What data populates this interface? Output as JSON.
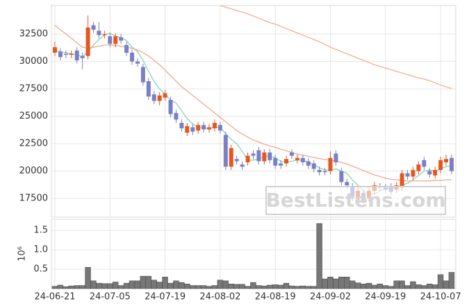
{
  "chart_data": [
    {
      "type": "candlestick",
      "categories": [
        "24-06-21",
        null,
        null,
        null,
        null,
        null,
        null,
        null,
        null,
        null,
        "24-07-05",
        null,
        null,
        null,
        null,
        null,
        null,
        null,
        null,
        null,
        "24-07-19",
        null,
        null,
        null,
        null,
        null,
        null,
        null,
        null,
        null,
        "24-08-02",
        null,
        null,
        null,
        null,
        null,
        null,
        null,
        null,
        null,
        "24-08-19",
        null,
        null,
        null,
        null,
        null,
        null,
        null,
        null,
        null,
        "24-09-02",
        null,
        null,
        null,
        null,
        null,
        null,
        null,
        null,
        null,
        "24-09-19",
        null,
        null,
        null,
        null,
        null,
        null,
        null,
        null,
        null,
        "24-10-07",
        null,
        null
      ],
      "open": [
        30800,
        30900,
        30700,
        30600,
        31000,
        30500,
        30500,
        33300,
        32800,
        32400,
        32300,
        31600,
        32200,
        31500,
        30800,
        30000,
        29500,
        28200,
        27000,
        26400,
        26700,
        26500,
        25300,
        24400,
        23500,
        24000,
        23700,
        24200,
        23800,
        23900,
        24200,
        23300,
        20400,
        21100,
        20600,
        20800,
        21600,
        21900,
        20900,
        21700,
        21200,
        20700,
        20700,
        21700,
        21000,
        21200,
        20900,
        20700,
        20100,
        20000,
        20000,
        21600,
        20000,
        19000,
        18600,
        17400,
        18000,
        17500,
        18200,
        18600,
        18500,
        18600,
        18300,
        18500,
        19800,
        19500,
        20000,
        21000,
        20000,
        19600,
        20100,
        20800,
        21200
      ],
      "high": [
        31800,
        31200,
        31000,
        31000,
        31300,
        30800,
        34200,
        33600,
        33600,
        32800,
        32600,
        32600,
        32500,
        31800,
        31100,
        30300,
        29800,
        28500,
        27300,
        27200,
        27400,
        26800,
        25600,
        24700,
        24400,
        24300,
        24500,
        24500,
        24300,
        24700,
        24500,
        23600,
        22400,
        21400,
        20900,
        21700,
        21900,
        22200,
        22000,
        22000,
        21500,
        21000,
        21400,
        22000,
        21500,
        21500,
        21200,
        21000,
        20400,
        20300,
        21800,
        21900,
        20300,
        19300,
        18900,
        18500,
        18300,
        18500,
        19000,
        18900,
        18800,
        18900,
        19000,
        20100,
        20100,
        20400,
        20900,
        21300,
        20300,
        20400,
        21300,
        21500,
        21500
      ],
      "low": [
        30500,
        30100,
        30300,
        30300,
        29800,
        29300,
        30200,
        32600,
        32100,
        32100,
        31300,
        31300,
        31600,
        30500,
        29700,
        29500,
        27800,
        26500,
        26100,
        26000,
        26400,
        24900,
        24400,
        23600,
        23200,
        23300,
        23400,
        23500,
        23500,
        23600,
        23400,
        20100,
        20100,
        20600,
        20100,
        20500,
        21100,
        20600,
        20600,
        20700,
        20200,
        20200,
        20400,
        21100,
        20700,
        20500,
        20200,
        19900,
        19600,
        19600,
        19700,
        20500,
        18700,
        18400,
        17300,
        17100,
        17000,
        17200,
        17900,
        18200,
        18000,
        17800,
        18000,
        18200,
        19200,
        19200,
        19700,
        20100,
        19400,
        19300,
        19800,
        20500,
        19700
      ],
      "close": [
        31300,
        30400,
        30600,
        30700,
        30100,
        30300,
        33100,
        32900,
        32400,
        32500,
        31600,
        32300,
        31900,
        30800,
        30000,
        29800,
        28100,
        26800,
        26400,
        26900,
        27100,
        25200,
        24700,
        23900,
        24100,
        23600,
        24200,
        23800,
        24000,
        24400,
        23700,
        20400,
        22100,
        20900,
        20400,
        21400,
        21400,
        20900,
        21700,
        21000,
        20500,
        20500,
        21100,
        21400,
        21200,
        20800,
        20500,
        20200,
        19900,
        19900,
        21200,
        20800,
        19000,
        18700,
        17600,
        18200,
        17300,
        18200,
        18700,
        18500,
        18300,
        18100,
        18700,
        19800,
        19500,
        20100,
        20600,
        20400,
        19700,
        20100,
        21000,
        21100,
        20000
      ],
      "up_color": "#e4581f",
      "down_color": "#7b7fc4",
      "lines": [
        {
          "color": "#86d5b4",
          "values": [
            31000,
            30900,
            30800,
            30700,
            30600,
            30450,
            30900,
            31500,
            32000,
            32400,
            32600,
            32300,
            32200,
            31900,
            31300,
            30900,
            30100,
            29100,
            28200,
            27500,
            27000,
            26500,
            26200,
            25500,
            24800,
            24300,
            24000,
            23900,
            23900,
            24000,
            24000,
            23400,
            22900,
            22500,
            21800,
            21000,
            21000,
            21100,
            21300,
            21400,
            21200,
            20900,
            20800,
            20900,
            21000,
            21000,
            20800,
            20600,
            20300,
            20100,
            20100,
            20200,
            20000,
            19800,
            19200,
            18700,
            18200,
            17900,
            17900,
            18200,
            18400,
            18400,
            18500,
            18700,
            18900,
            19200,
            19600,
            20000,
            20100,
            20000,
            20200,
            20400,
            20500
          ]
        },
        {
          "color": "#f0a88c",
          "values": [
            33300,
            32900,
            32500,
            32100,
            31700,
            31300,
            31200,
            31300,
            31400,
            31500,
            31500,
            31450,
            31400,
            31300,
            31200,
            31050,
            30800,
            30500,
            30100,
            29700,
            29200,
            28700,
            28200,
            27700,
            27300,
            26900,
            26500,
            26100,
            25700,
            25300,
            24900,
            24500,
            24100,
            23700,
            23400,
            23100,
            22850,
            22650,
            22450,
            22300,
            22150,
            22000,
            21850,
            21700,
            21550,
            21450,
            21350,
            21250,
            21150,
            21050,
            21000,
            20900,
            20800,
            20650,
            20450,
            20250,
            20050,
            19850,
            19650,
            19500,
            19350,
            19250,
            19200,
            19150,
            19100,
            19100,
            19100,
            19100,
            19100,
            19150,
            19150,
            19200,
            19200
          ]
        },
        {
          "color": "#f2b08a",
          "values": [
            null,
            null,
            null,
            null,
            null,
            null,
            null,
            null,
            null,
            null,
            null,
            null,
            null,
            null,
            null,
            null,
            null,
            null,
            null,
            null,
            null,
            null,
            null,
            null,
            null,
            null,
            null,
            null,
            null,
            null,
            35100,
            34950,
            34800,
            34650,
            34500,
            34350,
            34150,
            33950,
            33750,
            33550,
            33400,
            33200,
            33000,
            32800,
            32600,
            32400,
            32200,
            32000,
            31800,
            31550,
            31300,
            31100,
            30900,
            30700,
            30500,
            30300,
            30100,
            29900,
            29700,
            29550,
            29400,
            29250,
            29100,
            28950,
            28800,
            28650,
            28500,
            28400,
            28250,
            28050,
            27850,
            27700,
            27530
          ]
        }
      ],
      "ylim": [
        15800,
        35100
      ],
      "yticks": [
        17500,
        20000,
        22500,
        25000,
        27500,
        30000,
        32500
      ],
      "grid": true,
      "watermark": "BestListens.com"
    },
    {
      "type": "volume",
      "values": [
        0.06,
        0.09,
        0.05,
        0.07,
        0.08,
        0.08,
        0.55,
        0.2,
        0.14,
        0.13,
        0.13,
        0.17,
        0.08,
        0.14,
        0.2,
        0.2,
        0.32,
        0.32,
        0.22,
        0.17,
        0.3,
        0.14,
        0.2,
        0.16,
        0.12,
        0.08,
        0.08,
        0.08,
        0.06,
        0.08,
        0.22,
        0.2,
        0.12,
        0.11,
        0.11,
        0.06,
        0.16,
        0.08,
        0.07,
        0.09,
        0.1,
        0.09,
        0.14,
        0.07,
        0.06,
        0.07,
        0.06,
        0.06,
        1.68,
        0.25,
        0.3,
        0.25,
        0.3,
        0.3,
        0.2,
        0.15,
        0.12,
        0.14,
        0.09,
        0.12,
        0.08,
        0.06,
        0.2,
        0.2,
        0.08,
        0.18,
        0.1,
        0.08,
        0.12,
        0.1,
        0.36,
        0.2,
        0.42
      ],
      "color": "#777777",
      "ylabel": "10⁶",
      "ylim": [
        0,
        1.79
      ],
      "yticks": [
        0.5,
        {
          "value": 1,
          "label": "1.0"
        },
        1.5
      ],
      "grid": true
    }
  ]
}
